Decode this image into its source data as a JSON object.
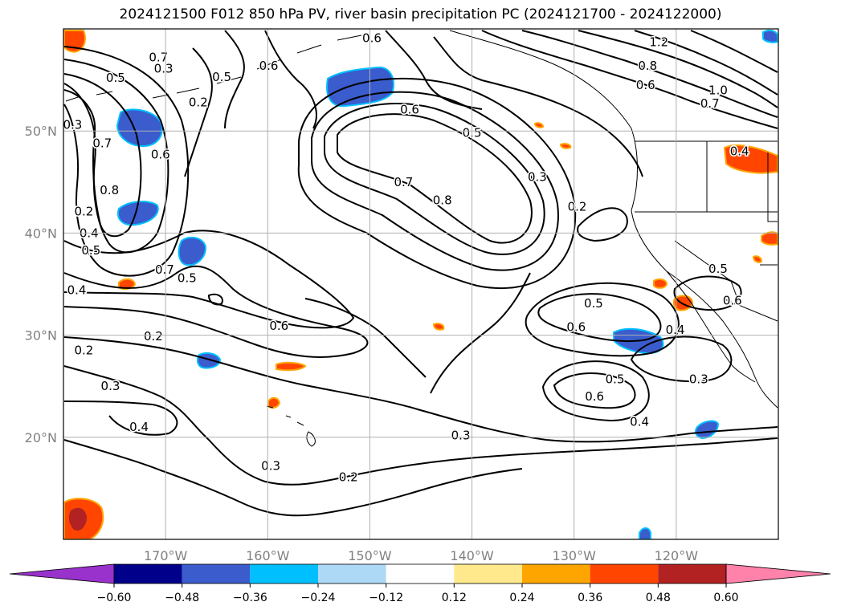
{
  "title": "2024121500 F012 850 hPa PV, river basin precipitation PC (2024121700 - 2024122000)",
  "map": {
    "projection": "plate-carree",
    "lon_range": [
      -180,
      -110
    ],
    "lat_range": [
      10,
      60
    ],
    "lon_ticks": [
      {
        "value": -170,
        "label": "170°W"
      },
      {
        "value": -160,
        "label": "160°W"
      },
      {
        "value": -150,
        "label": "150°W"
      },
      {
        "value": -140,
        "label": "140°W"
      },
      {
        "value": -130,
        "label": "130°W"
      },
      {
        "value": -120,
        "label": "120°W"
      }
    ],
    "lat_ticks": [
      {
        "value": 20,
        "label": "20°N"
      },
      {
        "value": 30,
        "label": "30°N"
      },
      {
        "value": 40,
        "label": "40°N"
      },
      {
        "value": 50,
        "label": "50°N"
      }
    ],
    "grid": true,
    "contour_labels": [
      {
        "text": "0.7",
        "lon": -170.7,
        "lat": 57.2
      },
      {
        "text": "0.6",
        "lon": -149.8,
        "lat": 59.1
      },
      {
        "text": "0.5",
        "lon": -174.9,
        "lat": 55.2
      },
      {
        "text": "0.3",
        "lon": -170.2,
        "lat": 56.1
      },
      {
        "text": "0.5",
        "lon": -164.5,
        "lat": 55.3
      },
      {
        "text": "0.6",
        "lon": -159.9,
        "lat": 56.4
      },
      {
        "text": "0.2",
        "lon": -166.8,
        "lat": 52.8
      },
      {
        "text": "0.3",
        "lon": -179.1,
        "lat": 50.6
      },
      {
        "text": "0.7",
        "lon": -176.2,
        "lat": 48.8
      },
      {
        "text": "0.6",
        "lon": -170.5,
        "lat": 47.7
      },
      {
        "text": "0.8",
        "lon": -175.5,
        "lat": 44.2
      },
      {
        "text": "0.2",
        "lon": -178.0,
        "lat": 42.1
      },
      {
        "text": "0.4",
        "lon": -177.5,
        "lat": 40.0
      },
      {
        "text": "0.5",
        "lon": -177.3,
        "lat": 38.3
      },
      {
        "text": "0.6",
        "lon": -146.1,
        "lat": 52.1
      },
      {
        "text": "0.5",
        "lon": -140.0,
        "lat": 49.8
      },
      {
        "text": "0.7",
        "lon": -146.7,
        "lat": 45.0
      },
      {
        "text": "0.8",
        "lon": -142.9,
        "lat": 43.2
      },
      {
        "text": "0.3",
        "lon": -133.6,
        "lat": 45.5
      },
      {
        "text": "0.2",
        "lon": -129.7,
        "lat": 42.6
      },
      {
        "text": "1.2",
        "lon": -121.7,
        "lat": 58.7
      },
      {
        "text": "0.8",
        "lon": -122.8,
        "lat": 56.4
      },
      {
        "text": "0.6",
        "lon": -123.0,
        "lat": 54.5
      },
      {
        "text": "0.7",
        "lon": -116.7,
        "lat": 52.7
      },
      {
        "text": "1.0",
        "lon": -115.9,
        "lat": 54.0
      },
      {
        "text": "0.4",
        "lon": -113.8,
        "lat": 48.0
      },
      {
        "text": "0.5",
        "lon": -115.9,
        "lat": 36.5
      },
      {
        "text": "0.6",
        "lon": -114.5,
        "lat": 33.4
      },
      {
        "text": "0.5",
        "lon": -167.9,
        "lat": 35.6
      },
      {
        "text": "0.7",
        "lon": -170.1,
        "lat": 36.4
      },
      {
        "text": "0.4",
        "lon": -178.7,
        "lat": 34.4
      },
      {
        "text": "0.6",
        "lon": -158.9,
        "lat": 30.9
      },
      {
        "text": "0.5",
        "lon": -128.1,
        "lat": 33.1
      },
      {
        "text": "0.6",
        "lon": -129.8,
        "lat": 30.8
      },
      {
        "text": "0.4",
        "lon": -120.1,
        "lat": 30.5
      },
      {
        "text": "0.3",
        "lon": -117.8,
        "lat": 25.7
      },
      {
        "text": "0.2",
        "lon": -178.0,
        "lat": 28.5
      },
      {
        "text": "0.2",
        "lon": -171.2,
        "lat": 29.9
      },
      {
        "text": "0.3",
        "lon": -175.4,
        "lat": 25.0
      },
      {
        "text": "0.4",
        "lon": -172.6,
        "lat": 21.0
      },
      {
        "text": "0.5",
        "lon": -126.0,
        "lat": 25.7
      },
      {
        "text": "0.6",
        "lon": -128.0,
        "lat": 24.0
      },
      {
        "text": "0.4",
        "lon": -123.6,
        "lat": 21.5
      },
      {
        "text": "0.3",
        "lon": -141.1,
        "lat": 20.2
      },
      {
        "text": "0.3",
        "lon": -159.7,
        "lat": 17.2
      },
      {
        "text": "0.2",
        "lon": -152.1,
        "lat": 16.1
      }
    ]
  },
  "colorbar": {
    "ticks": [
      "−0.60",
      "−0.48",
      "−0.36",
      "−0.24",
      "−0.12",
      "0.12",
      "0.24",
      "0.36",
      "0.48",
      "0.60"
    ],
    "colors": [
      "#9932cc",
      "#00008b",
      "#3a5ccc",
      "#00bfff",
      "#add8f6",
      "#ffffff",
      "#ffe98c",
      "#ffa500",
      "#ff4500",
      "#b22222",
      "#ff82ab"
    ],
    "levels": [
      -0.6,
      -0.48,
      -0.36,
      -0.24,
      -0.12,
      0.12,
      0.24,
      0.36,
      0.48,
      0.6
    ],
    "extend": "both"
  }
}
